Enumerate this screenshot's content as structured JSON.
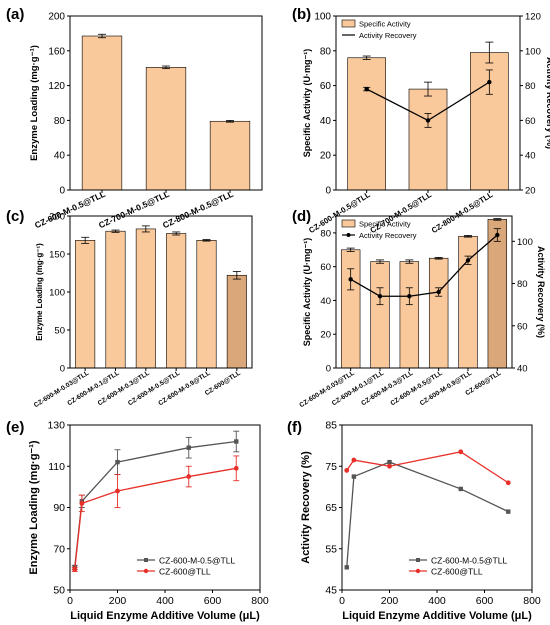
{
  "colors": {
    "bar": "#f9c89b",
    "bar_dark": "#d9a77a",
    "axis": "#000000",
    "series_black": "#555555",
    "series_red": "#e8302a"
  },
  "chart_data": [
    {
      "panel": "(a)",
      "type": "bar",
      "categories": [
        "CZ-600-M-0.5@TLL",
        "CZ-700-M-0.5@TLL",
        "CZ-800-M-0.5@TLL"
      ],
      "values": [
        177,
        141,
        79
      ],
      "errors": [
        2,
        1.5,
        1
      ],
      "ylabel": "Enzyme Loading (mg·g⁻¹)",
      "ylim": [
        0,
        200
      ],
      "yticks": [
        0,
        40,
        80,
        120,
        160,
        200
      ]
    },
    {
      "panel": "(b)",
      "type": "bar",
      "categories": [
        "CZ-600-M-0.5@TLL",
        "CZ-700-M-0.5@TLL",
        "CZ-800-M-0.5@TLL"
      ],
      "values": [
        76,
        58,
        79
      ],
      "errors": [
        1,
        4,
        6
      ],
      "line_values": [
        78,
        60,
        82
      ],
      "line_errors": [
        1,
        4,
        7
      ],
      "ylabel": "Specific Activity (U·mg⁻¹)",
      "y2label": "Activity Recovery (%)",
      "ylim": [
        0,
        100
      ],
      "yticks": [
        0,
        20,
        40,
        60,
        80,
        100
      ],
      "y2lim": [
        20,
        120
      ],
      "y2ticks": [
        20,
        40,
        60,
        80,
        100,
        120
      ],
      "legend": [
        "Specific Activity",
        "Activity Recovery"
      ]
    },
    {
      "panel": "(c)",
      "type": "bar",
      "categories": [
        "CZ-600-M-0.03@TLL",
        "CZ-600-M-0.1@TLL",
        "CZ-600-M-0.3@TLL",
        "CZ-600-M-0.5@TLL",
        "CZ-600-M-0.9@TLL",
        "CZ-600@TLL"
      ],
      "values": [
        168,
        180,
        183,
        177,
        168,
        122
      ],
      "errors": [
        4,
        1.5,
        4,
        2,
        1,
        5
      ],
      "highlight_last": true,
      "ylabel": "Enzyme Loading (mg·g⁻¹)",
      "ylim": [
        0,
        200
      ],
      "yticks": [
        0,
        50,
        100,
        150,
        200
      ]
    },
    {
      "panel": "(d)",
      "type": "bar",
      "categories": [
        "CZ-600-M-0.03@TLL",
        "CZ-600-M-0.1@TLL",
        "CZ-600-M-0.3@TLL",
        "CZ-600-M-0.5@TLL",
        "CZ-600-M-0.9@TLL",
        "CZ-600@TLL"
      ],
      "values": [
        70,
        63,
        63,
        65,
        78,
        88
      ],
      "errors": [
        1,
        1,
        1,
        0.5,
        0.5,
        0.5
      ],
      "highlight_last": true,
      "line_values": [
        82,
        74,
        74,
        76,
        91,
        103
      ],
      "line_errors": [
        5,
        4,
        4,
        2,
        2,
        3
      ],
      "ylabel": "Specific Activity (U·mg⁻¹)",
      "y2label": "Activity Recovery (%)",
      "ylim": [
        0,
        90
      ],
      "yticks": [
        0,
        20,
        40,
        60,
        80
      ],
      "y2lim": [
        40,
        112
      ],
      "y2ticks": [
        40,
        60,
        80,
        100
      ],
      "legend": [
        "Specific Activity",
        "Activity Recovery"
      ]
    },
    {
      "panel": "(e)",
      "type": "line",
      "xlabel": "Liquid Enzyme Additive Volume (μL)",
      "ylabel": "Enzyme Loading (mg·g⁻¹)",
      "xlim": [
        0,
        800
      ],
      "xticks": [
        0,
        200,
        400,
        600,
        800
      ],
      "ylim": [
        50,
        130
      ],
      "yticks": [
        50,
        70,
        90,
        110,
        130
      ],
      "series": [
        {
          "name": "CZ-600-M-0.5@TLL",
          "x": [
            20,
            50,
            200,
            500,
            700
          ],
          "y": [
            61,
            93,
            112,
            119,
            122
          ],
          "err": [
            1,
            3,
            6,
            5,
            5
          ]
        },
        {
          "name": "CZ-600@TLL",
          "x": [
            20,
            50,
            200,
            500,
            700
          ],
          "y": [
            60,
            92,
            98,
            105,
            109
          ],
          "err": [
            1,
            4,
            8,
            5,
            6
          ]
        }
      ],
      "legend": "bottom-right"
    },
    {
      "panel": "(f)",
      "type": "line",
      "xlabel": "Liquid Enzyme Additive Volume (μL)",
      "ylabel": "Activity Recovery (%)",
      "xlim": [
        0,
        800
      ],
      "xticks": [
        0,
        200,
        400,
        600,
        800
      ],
      "ylim": [
        45,
        85
      ],
      "yticks": [
        45,
        55,
        65,
        75,
        85
      ],
      "series": [
        {
          "name": "CZ-600-M-0.5@TLL",
          "x": [
            20,
            50,
            200,
            500,
            700
          ],
          "y": [
            50.5,
            72.5,
            76,
            69.5,
            64
          ]
        },
        {
          "name": "CZ-600@TLL",
          "x": [
            20,
            50,
            200,
            500,
            700
          ],
          "y": [
            74,
            76.5,
            75,
            78.5,
            71
          ]
        }
      ],
      "legend": "bottom-right"
    }
  ]
}
